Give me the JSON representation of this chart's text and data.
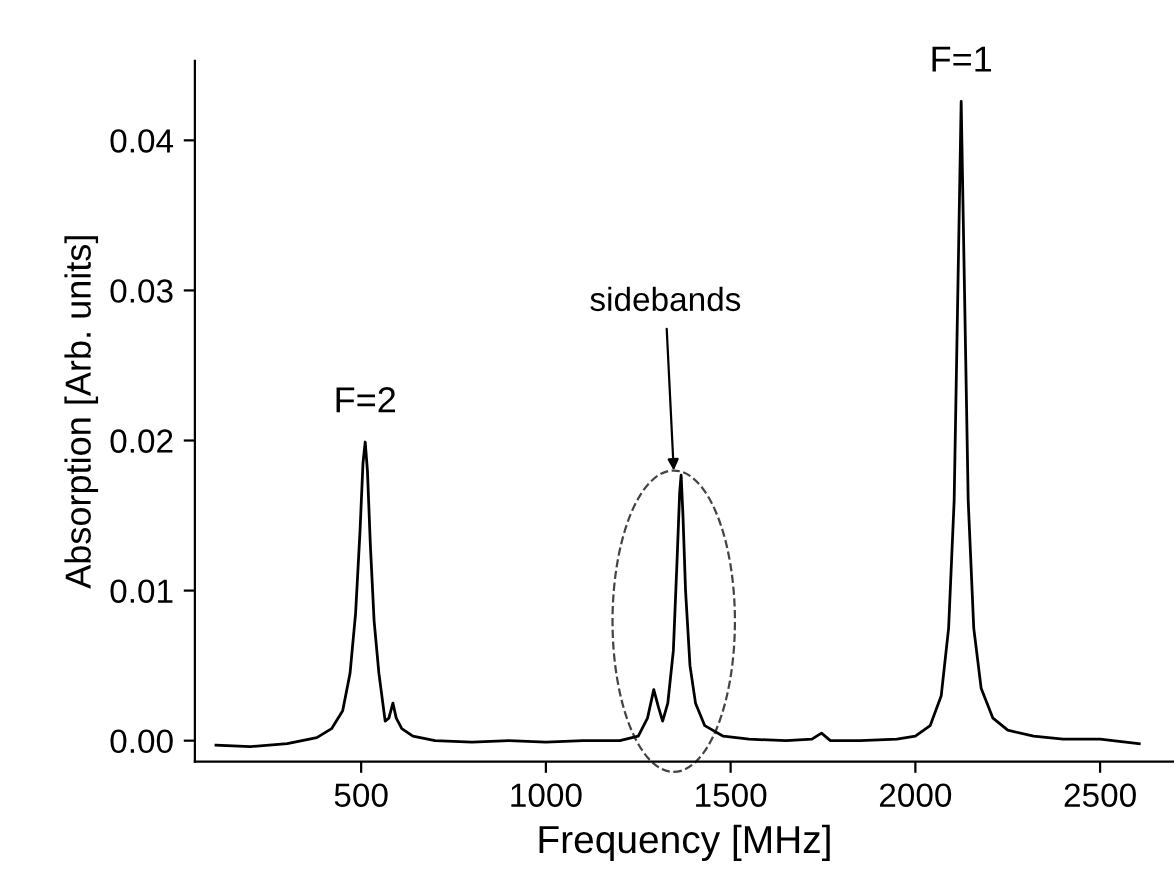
{
  "chart_data": {
    "type": "line",
    "xlabel": "Frequency [MHz]",
    "ylabel": "Absorption [Arb. units]",
    "xlim": [
      50,
      2700
    ],
    "ylim": [
      -0.0014,
      0.0453
    ],
    "xticks": [
      500,
      1000,
      1500,
      2000,
      2500
    ],
    "yticks": [
      {
        "value": 0,
        "label": "0.00"
      },
      {
        "value": 0.01,
        "label": "0.01"
      },
      {
        "value": 0.02,
        "label": "0.02"
      },
      {
        "value": 0.03,
        "label": "0.03"
      },
      {
        "value": 0.04,
        "label": "0.04"
      }
    ],
    "grid": false,
    "legend": false,
    "marker": "none",
    "line_style": "solid",
    "series": [
      {
        "color": "#000000",
        "x": [
          107,
          200,
          300,
          380,
          420,
          450,
          470,
          485,
          497,
          505,
          511,
          517,
          525,
          535,
          548,
          565,
          575,
          586,
          595,
          610,
          640,
          700,
          800,
          900,
          1000,
          1100,
          1200,
          1250,
          1275,
          1292,
          1305,
          1316,
          1330,
          1345,
          1355,
          1362,
          1366,
          1371,
          1378,
          1390,
          1405,
          1430,
          1480,
          1550,
          1650,
          1720,
          1746,
          1770,
          1850,
          1950,
          2000,
          2040,
          2070,
          2090,
          2105,
          2115,
          2124,
          2133,
          2143,
          2158,
          2178,
          2210,
          2250,
          2320,
          2400,
          2500,
          2606
        ],
        "values": [
          -0.0003,
          -0.0004,
          -0.0002,
          0.0002,
          0.0008,
          0.002,
          0.0045,
          0.0085,
          0.014,
          0.0185,
          0.0199,
          0.018,
          0.013,
          0.008,
          0.0045,
          0.0013,
          0.0015,
          0.0025,
          0.0015,
          0.0008,
          0.0003,
          0.0,
          -0.0001,
          0.0,
          -0.0001,
          0.0,
          0.0,
          0.0003,
          0.0015,
          0.0034,
          0.0022,
          0.0013,
          0.0025,
          0.006,
          0.012,
          0.0165,
          0.0177,
          0.015,
          0.01,
          0.005,
          0.0025,
          0.001,
          0.0003,
          0.0001,
          0.0,
          0.0001,
          0.0005,
          0.0,
          0.0,
          0.0001,
          0.0003,
          0.001,
          0.003,
          0.0075,
          0.016,
          0.03,
          0.0426,
          0.03,
          0.016,
          0.0075,
          0.0035,
          0.0015,
          0.0007,
          0.0003,
          0.0001,
          0.0001,
          -0.0002
        ]
      }
    ],
    "annotations": [
      {
        "text": "F=2",
        "x": 511,
        "y": 0.0199
      },
      {
        "text": "sidebands",
        "x": 1346,
        "y": 0.018
      },
      {
        "text": "F=1",
        "x": 2124,
        "y": 0.0426
      }
    ]
  }
}
